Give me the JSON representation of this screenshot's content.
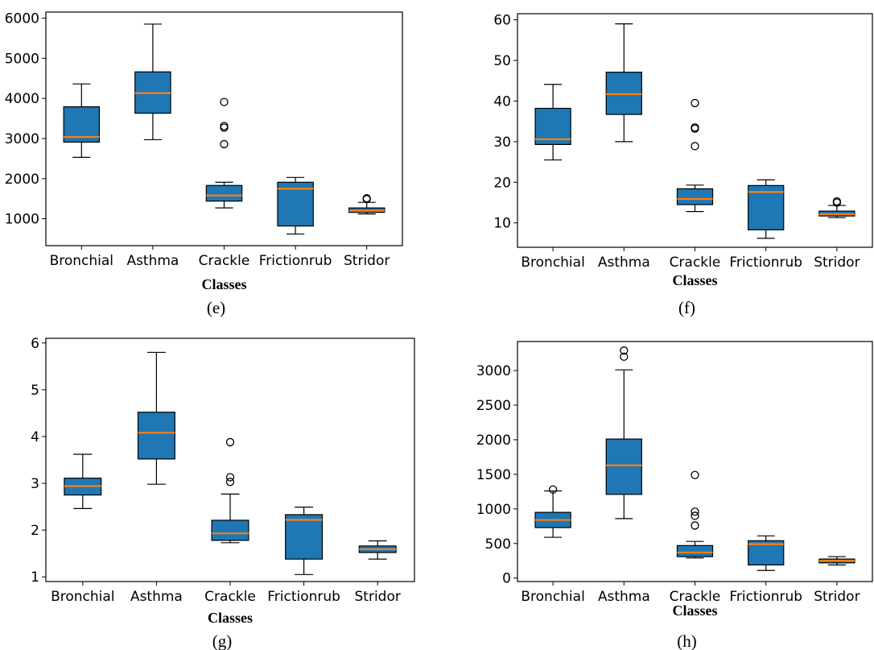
{
  "figure": {
    "caption_panels": [
      "(e)",
      "(f)",
      "(g)",
      "(h)"
    ]
  },
  "colors": {
    "box_fill": "#1f77b4",
    "median": "#ff7f0e",
    "line": "#000000"
  },
  "chart_data": [
    {
      "type": "box",
      "caption": "(e)",
      "xlabel": "Classes",
      "ylabel": "",
      "title": "",
      "categories": [
        "Bronchial",
        "Asthma",
        "Crackle",
        "Frictionrub",
        "Stridor"
      ],
      "ylim": [
        330,
        6150
      ],
      "yticks": [
        1000,
        2000,
        3000,
        4000,
        5000,
        6000
      ],
      "boxes": [
        {
          "whisker_low": 2530,
          "q1": 2910,
          "median": 3040,
          "q3": 3790,
          "whisker_high": 4360,
          "outliers": []
        },
        {
          "whisker_low": 2970,
          "q1": 3630,
          "median": 4130,
          "q3": 4660,
          "whisker_high": 5850,
          "outliers": []
        },
        {
          "whisker_low": 1270,
          "q1": 1440,
          "median": 1580,
          "q3": 1830,
          "whisker_high": 1910,
          "outliers": [
            2860,
            3270,
            3310,
            3910
          ]
        },
        {
          "whisker_low": 620,
          "q1": 820,
          "median": 1750,
          "q3": 1910,
          "whisker_high": 2030,
          "outliers": []
        },
        {
          "whisker_low": 1120,
          "q1": 1160,
          "median": 1200,
          "q3": 1270,
          "whisker_high": 1410,
          "outliers": [
            1490,
            1510
          ]
        }
      ]
    },
    {
      "type": "box",
      "caption": "(f)",
      "xlabel": "Classes",
      "ylabel": "",
      "title": "",
      "categories": [
        "Bronchial",
        "Asthma",
        "Crackle",
        "Frictionrub",
        "Stridor"
      ],
      "ylim": [
        4,
        61.5
      ],
      "yticks": [
        10,
        20,
        30,
        40,
        50,
        60
      ],
      "boxes": [
        {
          "whisker_low": 25.5,
          "q1": 29.3,
          "median": 30.6,
          "q3": 38.2,
          "whisker_high": 44.1,
          "outliers": []
        },
        {
          "whisker_low": 30.0,
          "q1": 36.7,
          "median": 41.7,
          "q3": 47.1,
          "whisker_high": 59.0,
          "outliers": []
        },
        {
          "whisker_low": 12.8,
          "q1": 14.5,
          "median": 15.9,
          "q3": 18.4,
          "whisker_high": 19.3,
          "outliers": [
            28.9,
            33.2,
            33.5,
            39.5
          ]
        },
        {
          "whisker_low": 6.2,
          "q1": 8.3,
          "median": 17.6,
          "q3": 19.2,
          "whisker_high": 20.6,
          "outliers": []
        },
        {
          "whisker_low": 11.3,
          "q1": 11.7,
          "median": 12.1,
          "q3": 12.9,
          "whisker_high": 14.3,
          "outliers": [
            15.0,
            15.3
          ]
        }
      ]
    },
    {
      "type": "box",
      "caption": "(g)",
      "xlabel": "Classes",
      "ylabel": "",
      "title": "",
      "categories": [
        "Bronchial",
        "Asthma",
        "Crackle",
        "Frictionrub",
        "Stridor"
      ],
      "ylim": [
        0.9,
        6.1
      ],
      "yticks": [
        1,
        2,
        3,
        4,
        5,
        6
      ],
      "boxes": [
        {
          "whisker_low": 2.46,
          "q1": 2.75,
          "median": 2.94,
          "q3": 3.11,
          "whisker_high": 3.62,
          "outliers": []
        },
        {
          "whisker_low": 2.98,
          "q1": 3.52,
          "median": 4.08,
          "q3": 4.52,
          "whisker_high": 5.8,
          "outliers": []
        },
        {
          "whisker_low": 1.73,
          "q1": 1.78,
          "median": 1.93,
          "q3": 2.21,
          "whisker_high": 2.77,
          "outliers": [
            3.03,
            3.13,
            3.88
          ]
        },
        {
          "whisker_low": 1.05,
          "q1": 1.38,
          "median": 2.22,
          "q3": 2.33,
          "whisker_high": 2.49,
          "outliers": []
        },
        {
          "whisker_low": 1.38,
          "q1": 1.52,
          "median": 1.59,
          "q3": 1.66,
          "whisker_high": 1.77,
          "outliers": []
        }
      ]
    },
    {
      "type": "box",
      "caption": "(h)",
      "xlabel": "Classes",
      "ylabel": "",
      "title": "",
      "categories": [
        "Bronchial",
        "Asthma",
        "Crackle",
        "Frictionrub",
        "Stridor"
      ],
      "ylim": [
        -50,
        3420
      ],
      "yticks": [
        0,
        500,
        1000,
        1500,
        2000,
        2500,
        3000
      ],
      "boxes": [
        {
          "whisker_low": 590,
          "q1": 730,
          "median": 840,
          "q3": 950,
          "whisker_high": 1260,
          "outliers": [
            1280
          ]
        },
        {
          "whisker_low": 860,
          "q1": 1210,
          "median": 1630,
          "q3": 2010,
          "whisker_high": 3010,
          "outliers": [
            3200,
            3290
          ]
        },
        {
          "whisker_low": 290,
          "q1": 310,
          "median": 370,
          "q3": 470,
          "whisker_high": 530,
          "outliers": [
            760,
            900,
            960,
            1490
          ]
        },
        {
          "whisker_low": 110,
          "q1": 190,
          "median": 490,
          "q3": 540,
          "whisker_high": 610,
          "outliers": []
        },
        {
          "whisker_low": 190,
          "q1": 220,
          "median": 250,
          "q3": 275,
          "whisker_high": 310,
          "outliers": []
        }
      ]
    }
  ]
}
